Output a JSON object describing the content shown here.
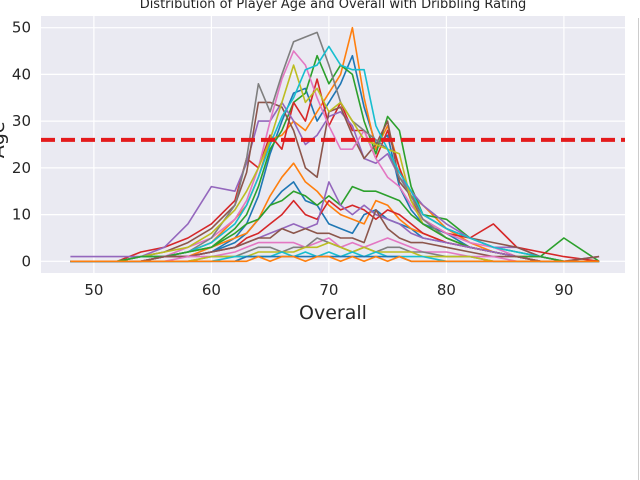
{
  "chart_data": {
    "type": "line",
    "title": "Distribution of Player Age and Overall with Dribbling Rating",
    "xlabel": "Overall",
    "ylabel": "Age",
    "xlim": [
      45.5,
      95.2
    ],
    "ylim": [
      -2.5,
      52.5
    ],
    "xticks": [
      50,
      60,
      70,
      80,
      90
    ],
    "yticks": [
      0,
      10,
      20,
      30,
      40,
      50
    ],
    "grid": true,
    "reference_line": {
      "y": 26,
      "color": "#e41a1c",
      "style": "dashed"
    },
    "colors": [
      "#1f77b4",
      "#ff7f0e",
      "#2ca02c",
      "#d62728",
      "#9467bd",
      "#8c564b",
      "#e377c2",
      "#7f7f7f",
      "#bcbd22",
      "#17becf"
    ],
    "x": [
      48,
      50,
      52,
      54,
      56,
      58,
      60,
      62,
      63,
      64,
      65,
      66,
      67,
      68,
      69,
      70,
      71,
      72,
      73,
      74,
      75,
      76,
      77,
      78,
      80,
      82,
      84,
      86,
      88,
      90,
      93
    ],
    "series": [
      {
        "values": [
          0,
          0,
          0,
          0,
          1,
          1,
          2,
          5,
          8,
          14,
          23,
          30,
          36,
          37,
          30,
          34,
          38,
          44,
          33,
          25,
          27,
          16,
          11,
          8,
          6,
          3,
          2,
          1,
          0,
          0,
          0
        ]
      },
      {
        "values": [
          0,
          0,
          0,
          1,
          1,
          2,
          4,
          9,
          12,
          18,
          26,
          27,
          30,
          28,
          32,
          36,
          40,
          50,
          35,
          24,
          29,
          20,
          14,
          12,
          7,
          4,
          2,
          1,
          1,
          0,
          0
        ]
      },
      {
        "values": [
          0,
          0,
          0,
          1,
          1,
          2,
          3,
          7,
          10,
          16,
          24,
          28,
          34,
          36,
          44,
          38,
          42,
          40,
          30,
          23,
          31,
          28,
          16,
          10,
          9,
          5,
          3,
          2,
          1,
          5,
          0
        ]
      },
      {
        "values": [
          0,
          0,
          0,
          2,
          3,
          5,
          8,
          13,
          22,
          20,
          27,
          24,
          34,
          30,
          39,
          29,
          34,
          28,
          28,
          22,
          28,
          20,
          13,
          9,
          6,
          5,
          8,
          3,
          2,
          1,
          0
        ]
      },
      {
        "values": [
          1,
          1,
          1,
          1,
          3,
          8,
          16,
          15,
          21,
          30,
          30,
          34,
          30,
          25,
          27,
          31,
          32,
          29,
          22,
          21,
          23,
          18,
          15,
          12,
          8,
          5,
          3,
          3,
          1,
          0,
          1
        ]
      },
      {
        "values": [
          0,
          0,
          0,
          1,
          2,
          4,
          7,
          12,
          19,
          34,
          34,
          33,
          28,
          20,
          18,
          32,
          33,
          27,
          22,
          25,
          30,
          17,
          14,
          10,
          7,
          5,
          4,
          3,
          1,
          0,
          1
        ]
      },
      {
        "values": [
          0,
          0,
          0,
          1,
          1,
          3,
          5,
          9,
          13,
          20,
          30,
          39,
          45,
          42,
          35,
          29,
          24,
          24,
          28,
          22,
          18,
          16,
          12,
          9,
          6,
          4,
          3,
          1,
          1,
          0,
          0
        ]
      },
      {
        "values": [
          0,
          0,
          0,
          1,
          1,
          2,
          5,
          12,
          22,
          38,
          32,
          40,
          47,
          48,
          49,
          42,
          34,
          30,
          28,
          26,
          24,
          18,
          14,
          9,
          5,
          3,
          2,
          1,
          0,
          0,
          0
        ]
      },
      {
        "values": [
          0,
          0,
          0,
          1,
          2,
          3,
          6,
          11,
          15,
          20,
          26,
          34,
          42,
          34,
          37,
          32,
          34,
          30,
          26,
          25,
          24,
          23,
          13,
          8,
          5,
          3,
          2,
          1,
          0,
          0,
          0
        ]
      },
      {
        "values": [
          0,
          0,
          0,
          1,
          1,
          2,
          4,
          8,
          12,
          18,
          25,
          31,
          35,
          41,
          42,
          46,
          42,
          41,
          41,
          29,
          24,
          19,
          15,
          10,
          7,
          5,
          3,
          2,
          1,
          0,
          0
        ]
      },
      {
        "values": [
          0,
          0,
          0,
          0,
          1,
          1,
          2,
          4,
          6,
          9,
          12,
          15,
          17,
          13,
          12,
          8,
          7,
          6,
          10,
          11,
          9,
          8,
          7,
          5,
          4,
          3,
          2,
          1,
          0,
          0,
          0
        ]
      },
      {
        "values": [
          0,
          0,
          0,
          0,
          1,
          1,
          3,
          5,
          6,
          9,
          14,
          18,
          21,
          17,
          15,
          12,
          10,
          9,
          8,
          13,
          12,
          9,
          7,
          6,
          4,
          3,
          2,
          1,
          0,
          0,
          0
        ]
      },
      {
        "values": [
          0,
          0,
          0,
          1,
          1,
          2,
          3,
          6,
          8,
          9,
          12,
          13,
          15,
          14,
          12,
          14,
          12,
          16,
          15,
          15,
          14,
          13,
          10,
          8,
          5,
          3,
          2,
          1,
          1,
          0,
          0
        ]
      },
      {
        "values": [
          0,
          0,
          0,
          0,
          1,
          1,
          2,
          3,
          5,
          6,
          8,
          10,
          13,
          10,
          9,
          13,
          11,
          12,
          11,
          9,
          11,
          10,
          8,
          6,
          4,
          3,
          2,
          1,
          0,
          0,
          0
        ]
      },
      {
        "values": [
          0,
          0,
          0,
          0,
          1,
          1,
          2,
          3,
          4,
          5,
          6,
          7,
          8,
          7,
          8,
          17,
          12,
          10,
          12,
          10,
          9,
          8,
          6,
          5,
          4,
          3,
          2,
          1,
          0,
          0,
          0
        ]
      },
      {
        "values": [
          0,
          0,
          0,
          0,
          1,
          1,
          2,
          3,
          4,
          5,
          5,
          7,
          6,
          7,
          6,
          6,
          5,
          5,
          4,
          11,
          7,
          5,
          4,
          4,
          3,
          2,
          1,
          1,
          0,
          0,
          0
        ]
      },
      {
        "values": [
          0,
          0,
          0,
          0,
          0,
          1,
          1,
          2,
          3,
          4,
          4,
          4,
          4,
          3,
          4,
          5,
          3,
          4,
          3,
          4,
          5,
          4,
          3,
          2,
          2,
          1,
          1,
          0,
          0,
          0,
          0
        ]
      },
      {
        "values": [
          0,
          0,
          0,
          0,
          0,
          0,
          1,
          1,
          2,
          3,
          3,
          2,
          3,
          3,
          5,
          4,
          3,
          2,
          3,
          2,
          3,
          3,
          2,
          2,
          1,
          1,
          0,
          0,
          0,
          0,
          0
        ]
      },
      {
        "values": [
          0,
          0,
          0,
          0,
          0,
          0,
          1,
          1,
          1,
          2,
          2,
          2,
          2,
          3,
          3,
          4,
          3,
          2,
          3,
          2,
          2,
          2,
          2,
          1,
          1,
          1,
          0,
          0,
          0,
          0,
          0
        ]
      },
      {
        "values": [
          0,
          0,
          0,
          0,
          0,
          0,
          0,
          1,
          1,
          1,
          1,
          2,
          1,
          2,
          1,
          2,
          1,
          2,
          1,
          2,
          1,
          1,
          1,
          1,
          0,
          0,
          0,
          0,
          0,
          0,
          0
        ]
      },
      {
        "values": [
          0,
          0,
          0,
          0,
          0,
          0,
          0,
          0,
          1,
          1,
          1,
          1,
          1,
          1,
          1,
          1,
          1,
          1,
          1,
          1,
          1,
          1,
          0,
          0,
          0,
          0,
          0,
          0,
          0,
          0,
          0
        ]
      },
      {
        "values": [
          0,
          0,
          0,
          0,
          0,
          0,
          0,
          0,
          0,
          1,
          0,
          1,
          1,
          0,
          1,
          1,
          0,
          1,
          0,
          1,
          0,
          1,
          0,
          0,
          0,
          0,
          0,
          0,
          0,
          0,
          0
        ]
      }
    ]
  }
}
